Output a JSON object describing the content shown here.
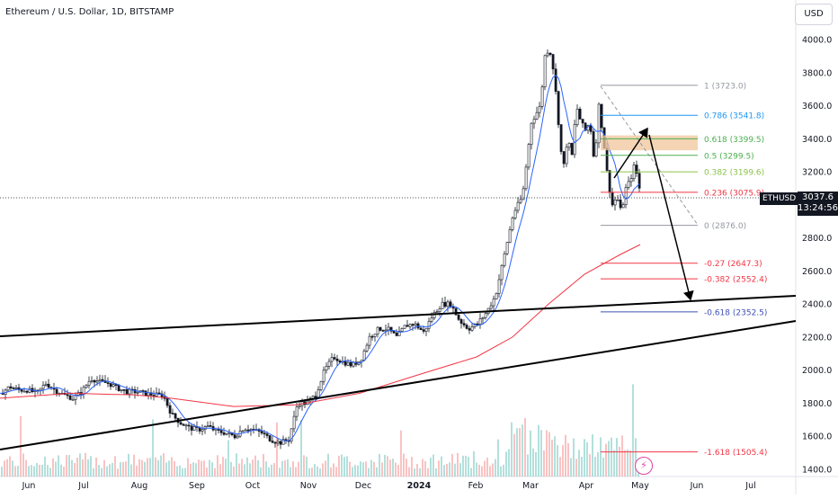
{
  "header": {
    "title": "Ethereum / U.S. Dollar, 1D, BITSTAMP",
    "currency_button": "USD"
  },
  "last_price": {
    "symbol": "ETHUSD",
    "price": "3037.6",
    "countdown": "13:24:56"
  },
  "colors": {
    "up": "#26a69a",
    "down": "#ef5350",
    "candle": "#131722",
    "ma_short": "#2962ff",
    "ma_long": "#f23645",
    "zone": "#f0c69b"
  },
  "chart_data": {
    "type": "candlestick",
    "y_axis": {
      "min": 1360,
      "max": 4150,
      "ticks": [
        1400,
        1600,
        1800,
        2000,
        2200,
        2400,
        2600,
        2800,
        3000,
        3200,
        3400,
        3600,
        3800,
        4000
      ],
      "tick_labels": [
        "1400.0",
        "1600.0",
        "1800.0",
        "2000.0",
        "2200.0",
        "2400.0",
        "2600.0",
        "2800.0",
        "3000.0",
        "3200.0",
        "3400.0",
        "3600.0",
        "3800.0",
        "4000.0"
      ]
    },
    "x_axis": {
      "labels": [
        "Jun",
        "Jul",
        "Aug",
        "Sep",
        "Oct",
        "Nov",
        "Dec",
        "2024",
        "Feb",
        "Mar",
        "Apr",
        "May",
        "Jun",
        "Jul"
      ],
      "bold_label": "2024"
    },
    "price_path": [
      [
        0,
        1860
      ],
      [
        10,
        1900
      ],
      [
        20,
        1880
      ],
      [
        30,
        1880
      ],
      [
        40,
        1860
      ],
      [
        50,
        1920
      ],
      [
        60,
        1880
      ],
      [
        70,
        1850
      ],
      [
        80,
        1830
      ],
      [
        90,
        1870
      ],
      [
        100,
        1950
      ],
      [
        110,
        1930
      ],
      [
        120,
        1920
      ],
      [
        130,
        1890
      ],
      [
        140,
        1870
      ],
      [
        150,
        1870
      ],
      [
        160,
        1860
      ],
      [
        170,
        1850
      ],
      [
        180,
        1850
      ],
      [
        190,
        1730
      ],
      [
        200,
        1680
      ],
      [
        210,
        1650
      ],
      [
        220,
        1640
      ],
      [
        230,
        1660
      ],
      [
        240,
        1630
      ],
      [
        250,
        1620
      ],
      [
        260,
        1600
      ],
      [
        270,
        1650
      ],
      [
        280,
        1640
      ],
      [
        290,
        1620
      ],
      [
        300,
        1580
      ],
      [
        310,
        1560
      ],
      [
        320,
        1580
      ],
      [
        330,
        1800
      ],
      [
        340,
        1800
      ],
      [
        350,
        1850
      ],
      [
        360,
        2000
      ],
      [
        370,
        2080
      ],
      [
        380,
        2050
      ],
      [
        390,
        2030
      ],
      [
        400,
        2060
      ],
      [
        410,
        2200
      ],
      [
        420,
        2250
      ],
      [
        430,
        2250
      ],
      [
        440,
        2200
      ],
      [
        450,
        2270
      ],
      [
        460,
        2280
      ],
      [
        470,
        2230
      ],
      [
        480,
        2330
      ],
      [
        490,
        2400
      ],
      [
        500,
        2400
      ],
      [
        510,
        2300
      ],
      [
        520,
        2250
      ],
      [
        530,
        2280
      ],
      [
        540,
        2350
      ],
      [
        550,
        2450
      ],
      [
        560,
        2700
      ],
      [
        570,
        2950
      ],
      [
        580,
        3050
      ],
      [
        590,
        3500
      ],
      [
        600,
        3600
      ],
      [
        605,
        3900
      ],
      [
        610,
        3950
      ],
      [
        615,
        3800
      ],
      [
        620,
        3500
      ],
      [
        625,
        3200
      ],
      [
        630,
        3400
      ],
      [
        635,
        3300
      ],
      [
        640,
        3600
      ],
      [
        645,
        3500
      ],
      [
        650,
        3450
      ],
      [
        655,
        3500
      ],
      [
        660,
        3250
      ],
      [
        665,
        3600
      ],
      [
        670,
        3400
      ],
      [
        675,
        3150
      ],
      [
        680,
        3000
      ],
      [
        685,
        3050
      ],
      [
        690,
        2950
      ],
      [
        695,
        3100
      ],
      [
        700,
        3150
      ],
      [
        705,
        3250
      ],
      [
        710,
        3100
      ],
      [
        712,
        3040
      ]
    ],
    "volume_note": "relative heights, up/down colored",
    "fib_levels": [
      {
        "ratio": "1",
        "label": "1 (3723.0)",
        "value": 3723.0,
        "color": "#9598a1"
      },
      {
        "ratio": "0.786",
        "label": "0.786 (3541.8)",
        "value": 3541.8,
        "color": "#2196f3"
      },
      {
        "ratio": "0.618",
        "label": "0.618 (3399.5)",
        "value": 3399.5,
        "color": "#4caf50"
      },
      {
        "ratio": "0.5",
        "label": "0.5 (3299.5)",
        "value": 3299.5,
        "color": "#4caf50"
      },
      {
        "ratio": "0.382",
        "label": "0.382 (3199.6)",
        "value": 3199.6,
        "color": "#8bc34a"
      },
      {
        "ratio": "0.236",
        "label": "0.236 (3075.9)",
        "value": 3075.9,
        "color": "#f23645"
      },
      {
        "ratio": "0",
        "label": "0 (2876.0)",
        "value": 2876.0,
        "color": "#9598a1"
      },
      {
        "ratio": "-0.27",
        "label": "-0.27 (2647.3)",
        "value": 2647.3,
        "color": "#f23645"
      },
      {
        "ratio": "-0.382",
        "label": "-0.382 (2552.4)",
        "value": 2552.4,
        "color": "#f23645"
      },
      {
        "ratio": "-0.618",
        "label": "-0.618 (2352.5)",
        "value": 2352.5,
        "color": "#3f51b5"
      },
      {
        "ratio": "-1.618",
        "label": "-1.618 (1505.4)",
        "value": 1505.4,
        "color": "#f23645"
      }
    ],
    "zone": {
      "low": 3330,
      "high": 3420
    },
    "last_price_value": 3037.6
  }
}
